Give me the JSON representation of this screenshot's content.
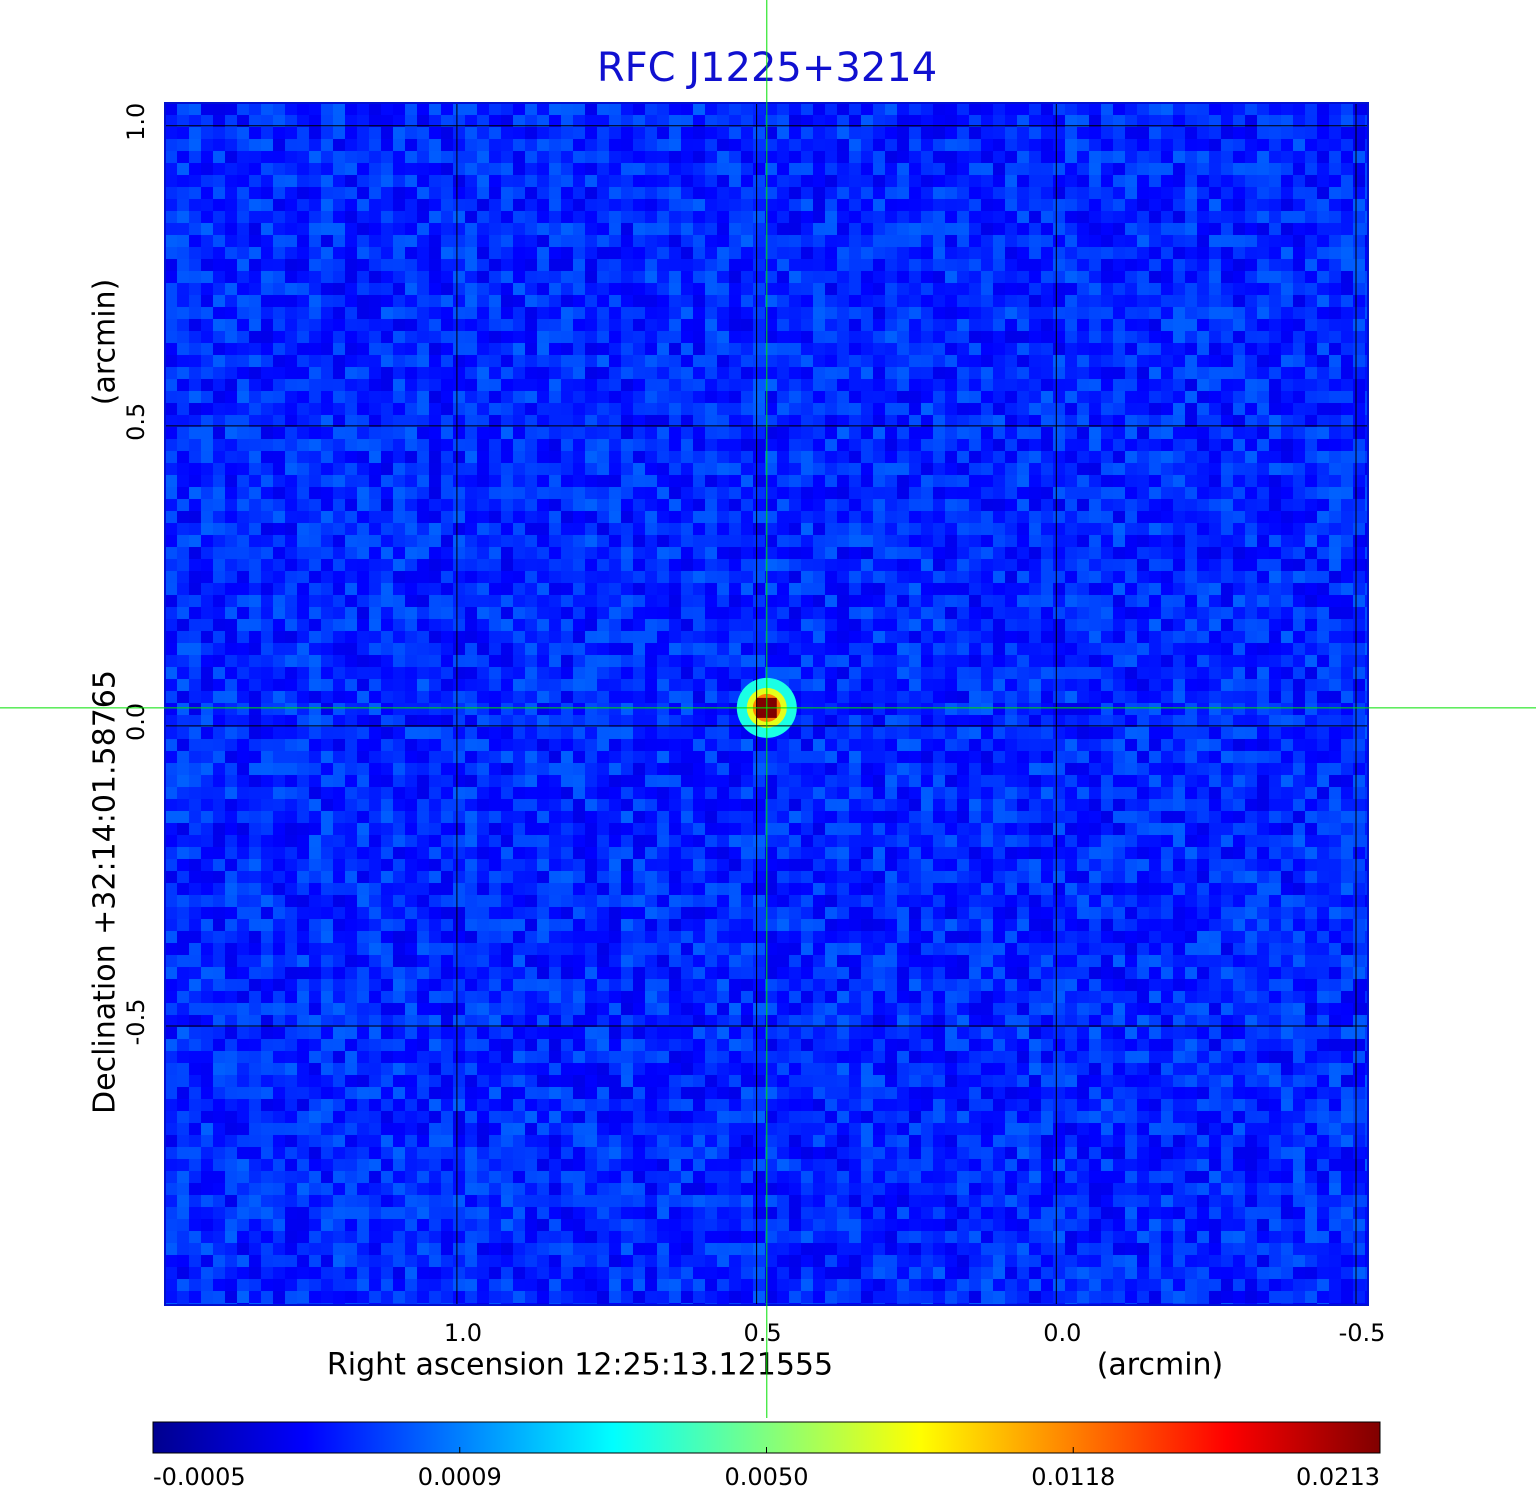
{
  "chart_data": {
    "type": "image",
    "title": "RFC J1225+3214",
    "xlabel": "Right ascension  12:25:13.121555",
    "xunit": "(arcmin)",
    "ylabel": "Declination  +32:14:01.58765",
    "yunit": "(arcmin)",
    "xlim": [
      1.487,
      -0.52
    ],
    "ylim": [
      -0.965,
      1.038
    ],
    "xticks": [
      {
        "value": 1,
        "label": "1.0"
      },
      0.5,
      {
        "value": 0,
        "label": "0.0"
      },
      -0.5
    ],
    "yticks": [
      {
        "value": 1,
        "label": "1.0"
      },
      0.5,
      {
        "value": 0,
        "label": "0.0"
      },
      -0.5
    ],
    "grid": true,
    "colormap": "jet",
    "colorbar": {
      "lim": [
        -0.0005,
        0.0213
      ],
      "ticks": [
        -0.0005,
        0.0009,
        {
          "value": 0.005,
          "label": "0.0050"
        },
        0.0118,
        0.0213
      ]
    },
    "source": {
      "x": 0.483,
      "y": 0.03,
      "peak": 0.0213
    },
    "crosshair_color": "#00e000",
    "title_color": "#1010d0"
  }
}
